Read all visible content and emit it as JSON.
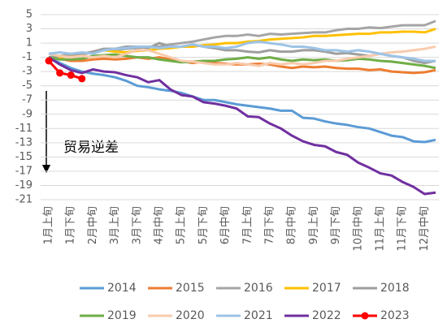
{
  "chart_data": {
    "type": "line",
    "annotation": "贸易逆差",
    "categories": [
      "1月上旬",
      null,
      "1月下旬",
      null,
      "2月中旬",
      null,
      "3月上旬",
      null,
      "3月下旬",
      null,
      "4月中旬",
      null,
      "5月上旬",
      null,
      "5月下旬",
      null,
      "6月中旬",
      null,
      "7月上旬",
      null,
      "7月下旬",
      null,
      "8月中旬",
      null,
      "9月上旬",
      null,
      "9月下旬",
      null,
      "10月中旬",
      null,
      "11月上旬",
      null,
      "11月下旬",
      null,
      "12月中旬",
      null
    ],
    "ylim": [
      -21,
      5
    ],
    "yticks": [
      5,
      3,
      1,
      -1,
      -3,
      -5,
      -7,
      -9,
      -11,
      -13,
      -15,
      -17,
      -19,
      -21
    ],
    "grid": true,
    "series": [
      {
        "name": "2014",
        "color": "#5b9bd5",
        "values": [
          -1,
          -1.8,
          -2.5,
          -3,
          -3.3,
          -3.5,
          -3.8,
          -4.3,
          -5,
          -5.2,
          -5.5,
          -5.7,
          -6,
          -6.5,
          -7,
          -7,
          -7.3,
          -7.6,
          -7.8,
          -8,
          -8.2,
          -8.5,
          -8.5,
          -9.5,
          -9.6,
          -10,
          -10.3,
          -10.5,
          -10.8,
          -11,
          -11.5,
          -12,
          -12.2,
          -12.8,
          -12.9,
          -12.6
        ]
      },
      {
        "name": "2015",
        "color": "#ed7d31",
        "values": [
          -1,
          -1.2,
          -1.5,
          -1.5,
          -1.3,
          -1.2,
          -1.3,
          -1.2,
          -1,
          -1.2,
          -1,
          -1.3,
          -1.5,
          -1.8,
          -1.6,
          -1.8,
          -1.9,
          -2,
          -2,
          -1.9,
          -2,
          -2.3,
          -2.5,
          -2.3,
          -2.4,
          -2.3,
          -2.5,
          -2.6,
          -2.6,
          -2.8,
          -2.7,
          -3,
          -3.1,
          -3.2,
          -3.1,
          -2.8
        ]
      },
      {
        "name": "2016",
        "color": "#a5a5a5",
        "values": [
          -1,
          -0.8,
          -0.8,
          -0.6,
          -0.3,
          0,
          0,
          0.2,
          0.3,
          0.5,
          0.5,
          0.8,
          1,
          1.2,
          1.5,
          1.8,
          2,
          2,
          2.2,
          2,
          2.3,
          2.2,
          2.3,
          2.4,
          2.5,
          2.5,
          2.8,
          3,
          3,
          3.2,
          3.1,
          3.3,
          3.5,
          3.5,
          3.5,
          4.1
        ]
      },
      {
        "name": "2017",
        "color": "#ffc000",
        "values": [
          -1,
          -1,
          -0.8,
          -0.5,
          -0.3,
          0,
          -0.2,
          -0.3,
          -0.1,
          0,
          0.2,
          0.3,
          0.5,
          0.5,
          0.7,
          0.8,
          1,
          1,
          1.2,
          1.3,
          1.5,
          1.6,
          1.7,
          1.8,
          2,
          2,
          2.1,
          2.2,
          2.3,
          2.3,
          2.5,
          2.5,
          2.6,
          2.6,
          2.5,
          3
        ]
      },
      {
        "name": "2018",
        "color": "#9e9e9e",
        "values": [
          -1,
          -0.8,
          -0.6,
          -0.5,
          -0.2,
          0.2,
          0.2,
          0.5,
          0.5,
          0.3,
          1,
          0.5,
          0.5,
          0.8,
          0.5,
          0.3,
          0,
          0,
          -0.2,
          -0.3,
          0,
          -0.2,
          -0.2,
          0,
          0,
          -0.2,
          -0.5,
          -0.4,
          -0.6,
          -0.8,
          -0.5,
          -0.8,
          -1,
          -1.5,
          -1.8,
          -1.5
        ]
      },
      {
        "name": "2019",
        "color": "#70ad47",
        "values": [
          -1,
          -1.3,
          -1.3,
          -1.2,
          -0.8,
          -0.7,
          -0.6,
          -0.8,
          -1,
          -1,
          -1.3,
          -1.5,
          -1.7,
          -1.6,
          -1.5,
          -1.5,
          -1.3,
          -1.2,
          -1,
          -1.2,
          -1,
          -1.3,
          -1.5,
          -1.3,
          -1.4,
          -1.3,
          -1.5,
          -1.4,
          -1.2,
          -1.3,
          -1.5,
          -1.6,
          -1.8,
          -2,
          -2.2,
          -2.5
        ]
      },
      {
        "name": "2020",
        "color": "#f8cbad",
        "values": [
          -0.5,
          -0.8,
          -1,
          -0.8,
          -1,
          -0.8,
          -1,
          -0.5,
          0,
          0,
          -0.5,
          -1,
          -1.5,
          -1.6,
          -1.8,
          -2,
          -2,
          -1.8,
          -2,
          -2.2,
          -1.8,
          -2,
          -1.8,
          -2,
          -1.8,
          -1.5,
          -1.5,
          -1.2,
          -1,
          -0.8,
          -0.5,
          -0.3,
          -0.2,
          0,
          0.2,
          0.5
        ]
      },
      {
        "name": "2021",
        "color": "#9dc3e6",
        "values": [
          -0.5,
          -0.3,
          -0.5,
          -0.3,
          -0.5,
          0,
          0.2,
          0.3,
          0.5,
          0.5,
          0.3,
          0.5,
          0.5,
          0.8,
          0.5,
          0.5,
          0.3,
          0.5,
          1,
          1.2,
          1,
          0.8,
          0.5,
          0.5,
          0.3,
          0,
          0,
          -0.2,
          0,
          -0.2,
          -0.5,
          -0.8,
          -1,
          -1.2,
          -1.5,
          -1.5
        ]
      },
      {
        "name": "2022",
        "color": "#7030a0",
        "values": [
          -1,
          -2,
          -2.8,
          -3.2,
          -2.7,
          -3,
          -3.1,
          -3.5,
          -3.8,
          -4.5,
          -4.2,
          -5.5,
          -6.3,
          -6.5,
          -7.3,
          -7.5,
          -7.8,
          -8.2,
          -9.3,
          -9.4,
          -10.3,
          -11,
          -12,
          -12.8,
          -13.3,
          -13.5,
          -14.3,
          -14.7,
          -15.8,
          -16.5,
          -17.3,
          -17.6,
          -18.5,
          -19.2,
          -20.2,
          -20
        ]
      },
      {
        "name": "2023",
        "color": "#ff0000",
        "markers": true,
        "values": [
          -1.5,
          -3.2,
          -3.5,
          -4,
          null,
          null,
          null,
          null,
          null,
          null,
          null,
          null,
          null,
          null,
          null,
          null,
          null,
          null,
          null,
          null,
          null,
          null,
          null,
          null,
          null,
          null,
          null,
          null,
          null,
          null,
          null,
          null,
          null,
          null,
          null,
          null
        ]
      }
    ]
  }
}
